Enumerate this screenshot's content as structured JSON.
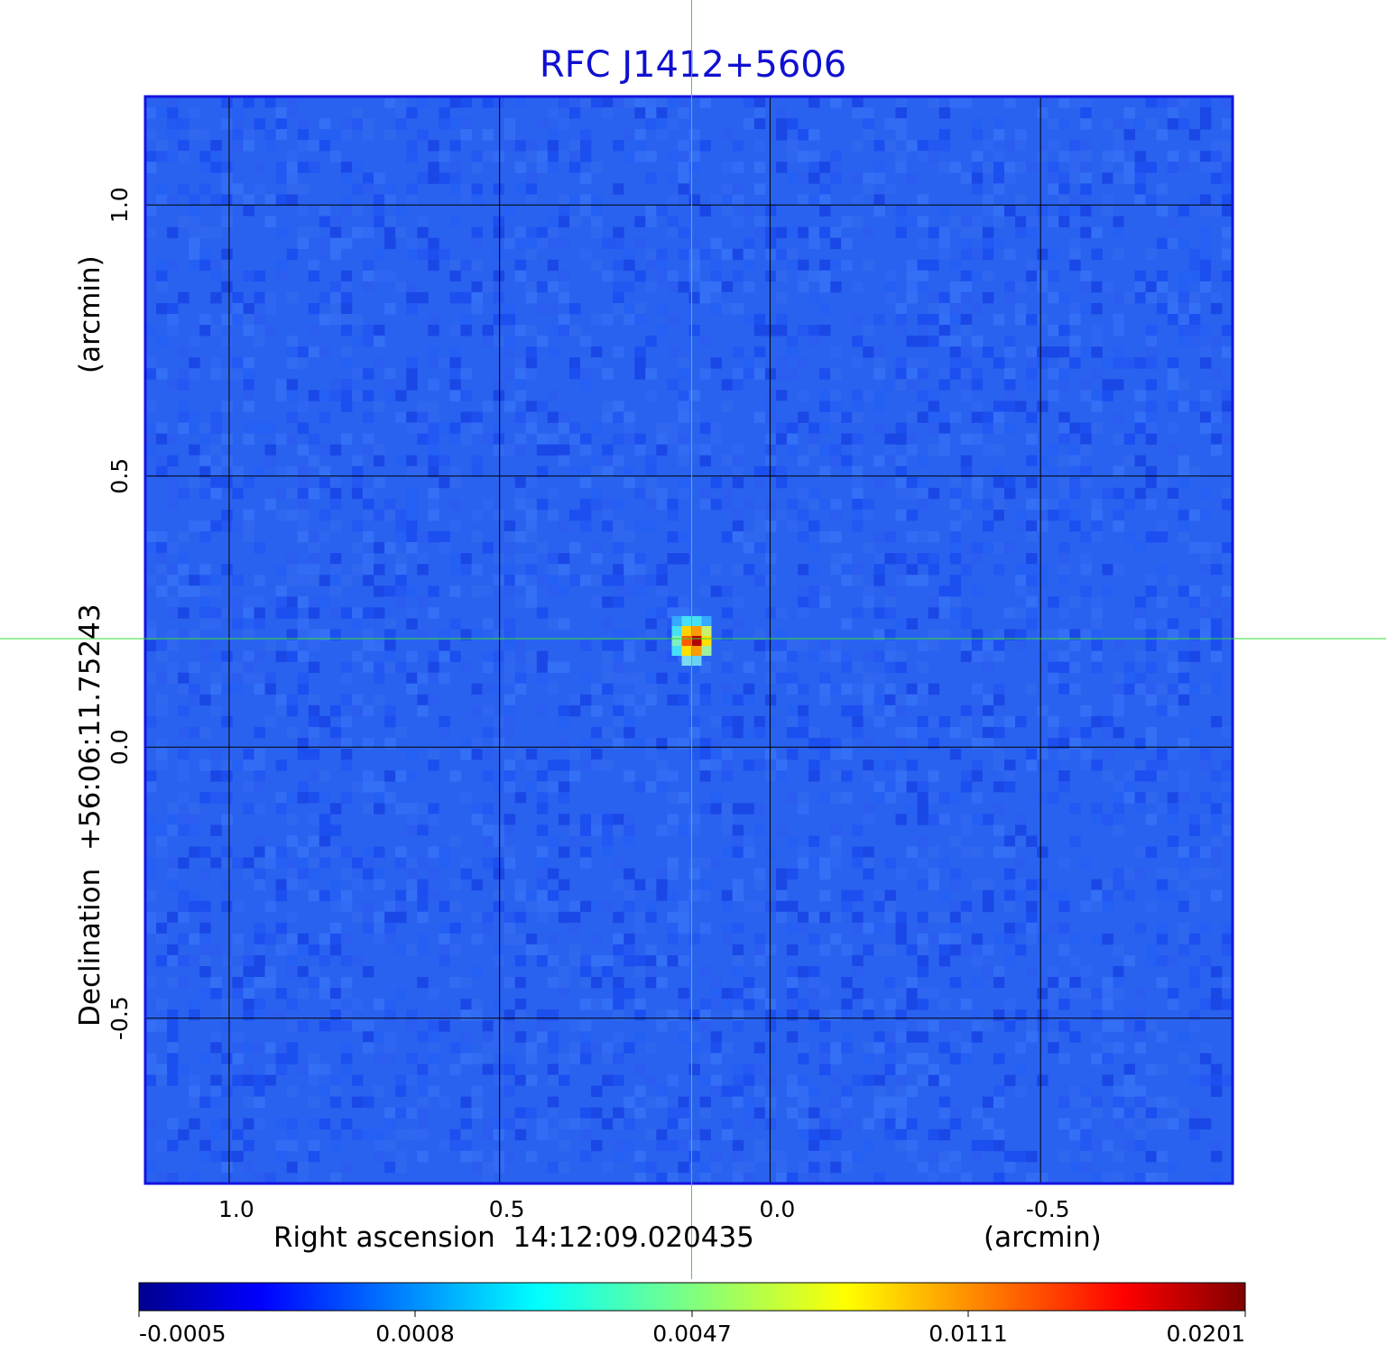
{
  "chart_data": {
    "type": "heatmap",
    "title": "RFC J1412+5606",
    "xlabel": "Right ascension  14:12:09.020435",
    "xunit": "(arcmin)",
    "ylabel": "Declination  +56:06:11.75243",
    "yunit": "(arcmin)",
    "x_ticks": [
      "1.0",
      "0.5",
      "0.0",
      "-0.5"
    ],
    "x_tick_values": [
      1.0,
      0.5,
      0.0,
      -0.5
    ],
    "y_ticks": [
      "1.0",
      "0.5",
      "0.0",
      "-0.5"
    ],
    "y_tick_values": [
      1.0,
      0.5,
      0.0,
      -0.5
    ],
    "xlim": [
      1.155,
      -0.855
    ],
    "ylim": [
      -0.805,
      1.2
    ],
    "grid": true,
    "source": {
      "x": 0.145,
      "y": 0.2,
      "peak": 0.0201
    },
    "crosshair": {
      "x": 0.145,
      "y": 0.2
    },
    "colorbar": {
      "orientation": "horizontal",
      "position": "bottom",
      "ticks": [
        "-0.0005",
        "0.0008",
        "0.0047",
        "0.0111",
        "0.0201"
      ],
      "tick_values": [
        -0.0005,
        0.0008,
        0.0047,
        0.0111,
        0.0201
      ],
      "colormap": "jet"
    },
    "colors": {
      "title": "#1010d0",
      "frame": "#1515dd",
      "crosshair": "#33dd33",
      "background_field": "#2a62f0"
    }
  }
}
